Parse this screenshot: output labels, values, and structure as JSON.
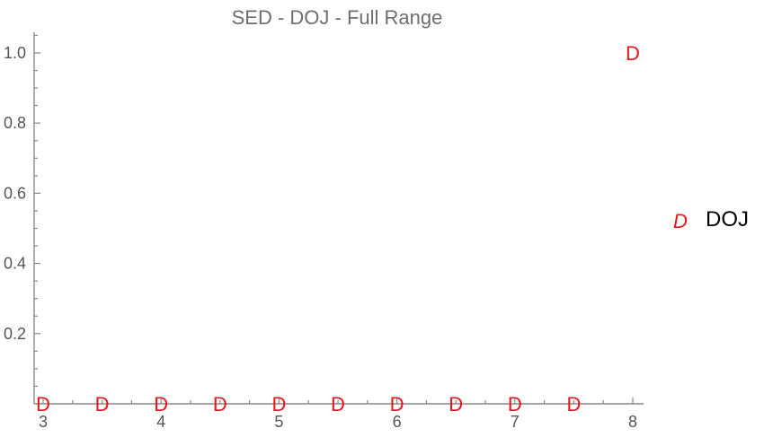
{
  "chart_data": {
    "type": "scatter",
    "title": "SED - DOJ - Full Range",
    "xlabel": "",
    "ylabel": "",
    "xlim": [
      2.95,
      8.1
    ],
    "ylim": [
      0,
      1.05
    ],
    "x_ticks": [
      3,
      4,
      5,
      6,
      7,
      8
    ],
    "y_ticks": [
      0.2,
      0.4,
      0.6,
      0.8,
      1.0
    ],
    "y_tick_labels": [
      "0.2",
      "0.4",
      "0.6",
      "0.8",
      "1.0"
    ],
    "x_minor_step": 0.25,
    "y_minor_step": 0.05,
    "grid": false,
    "legend_position": "right",
    "series": [
      {
        "name": "DOJ",
        "marker": "D",
        "color": "#e8151b",
        "points": [
          {
            "x": 3.0,
            "y": 0
          },
          {
            "x": 3.5,
            "y": 0
          },
          {
            "x": 4.0,
            "y": 0
          },
          {
            "x": 4.5,
            "y": 0
          },
          {
            "x": 5.0,
            "y": 0
          },
          {
            "x": 5.5,
            "y": 0
          },
          {
            "x": 6.0,
            "y": 0
          },
          {
            "x": 6.5,
            "y": 0
          },
          {
            "x": 7.0,
            "y": 0
          },
          {
            "x": 7.5,
            "y": 0
          },
          {
            "x": 8.0,
            "y": 1.0
          }
        ]
      }
    ]
  }
}
